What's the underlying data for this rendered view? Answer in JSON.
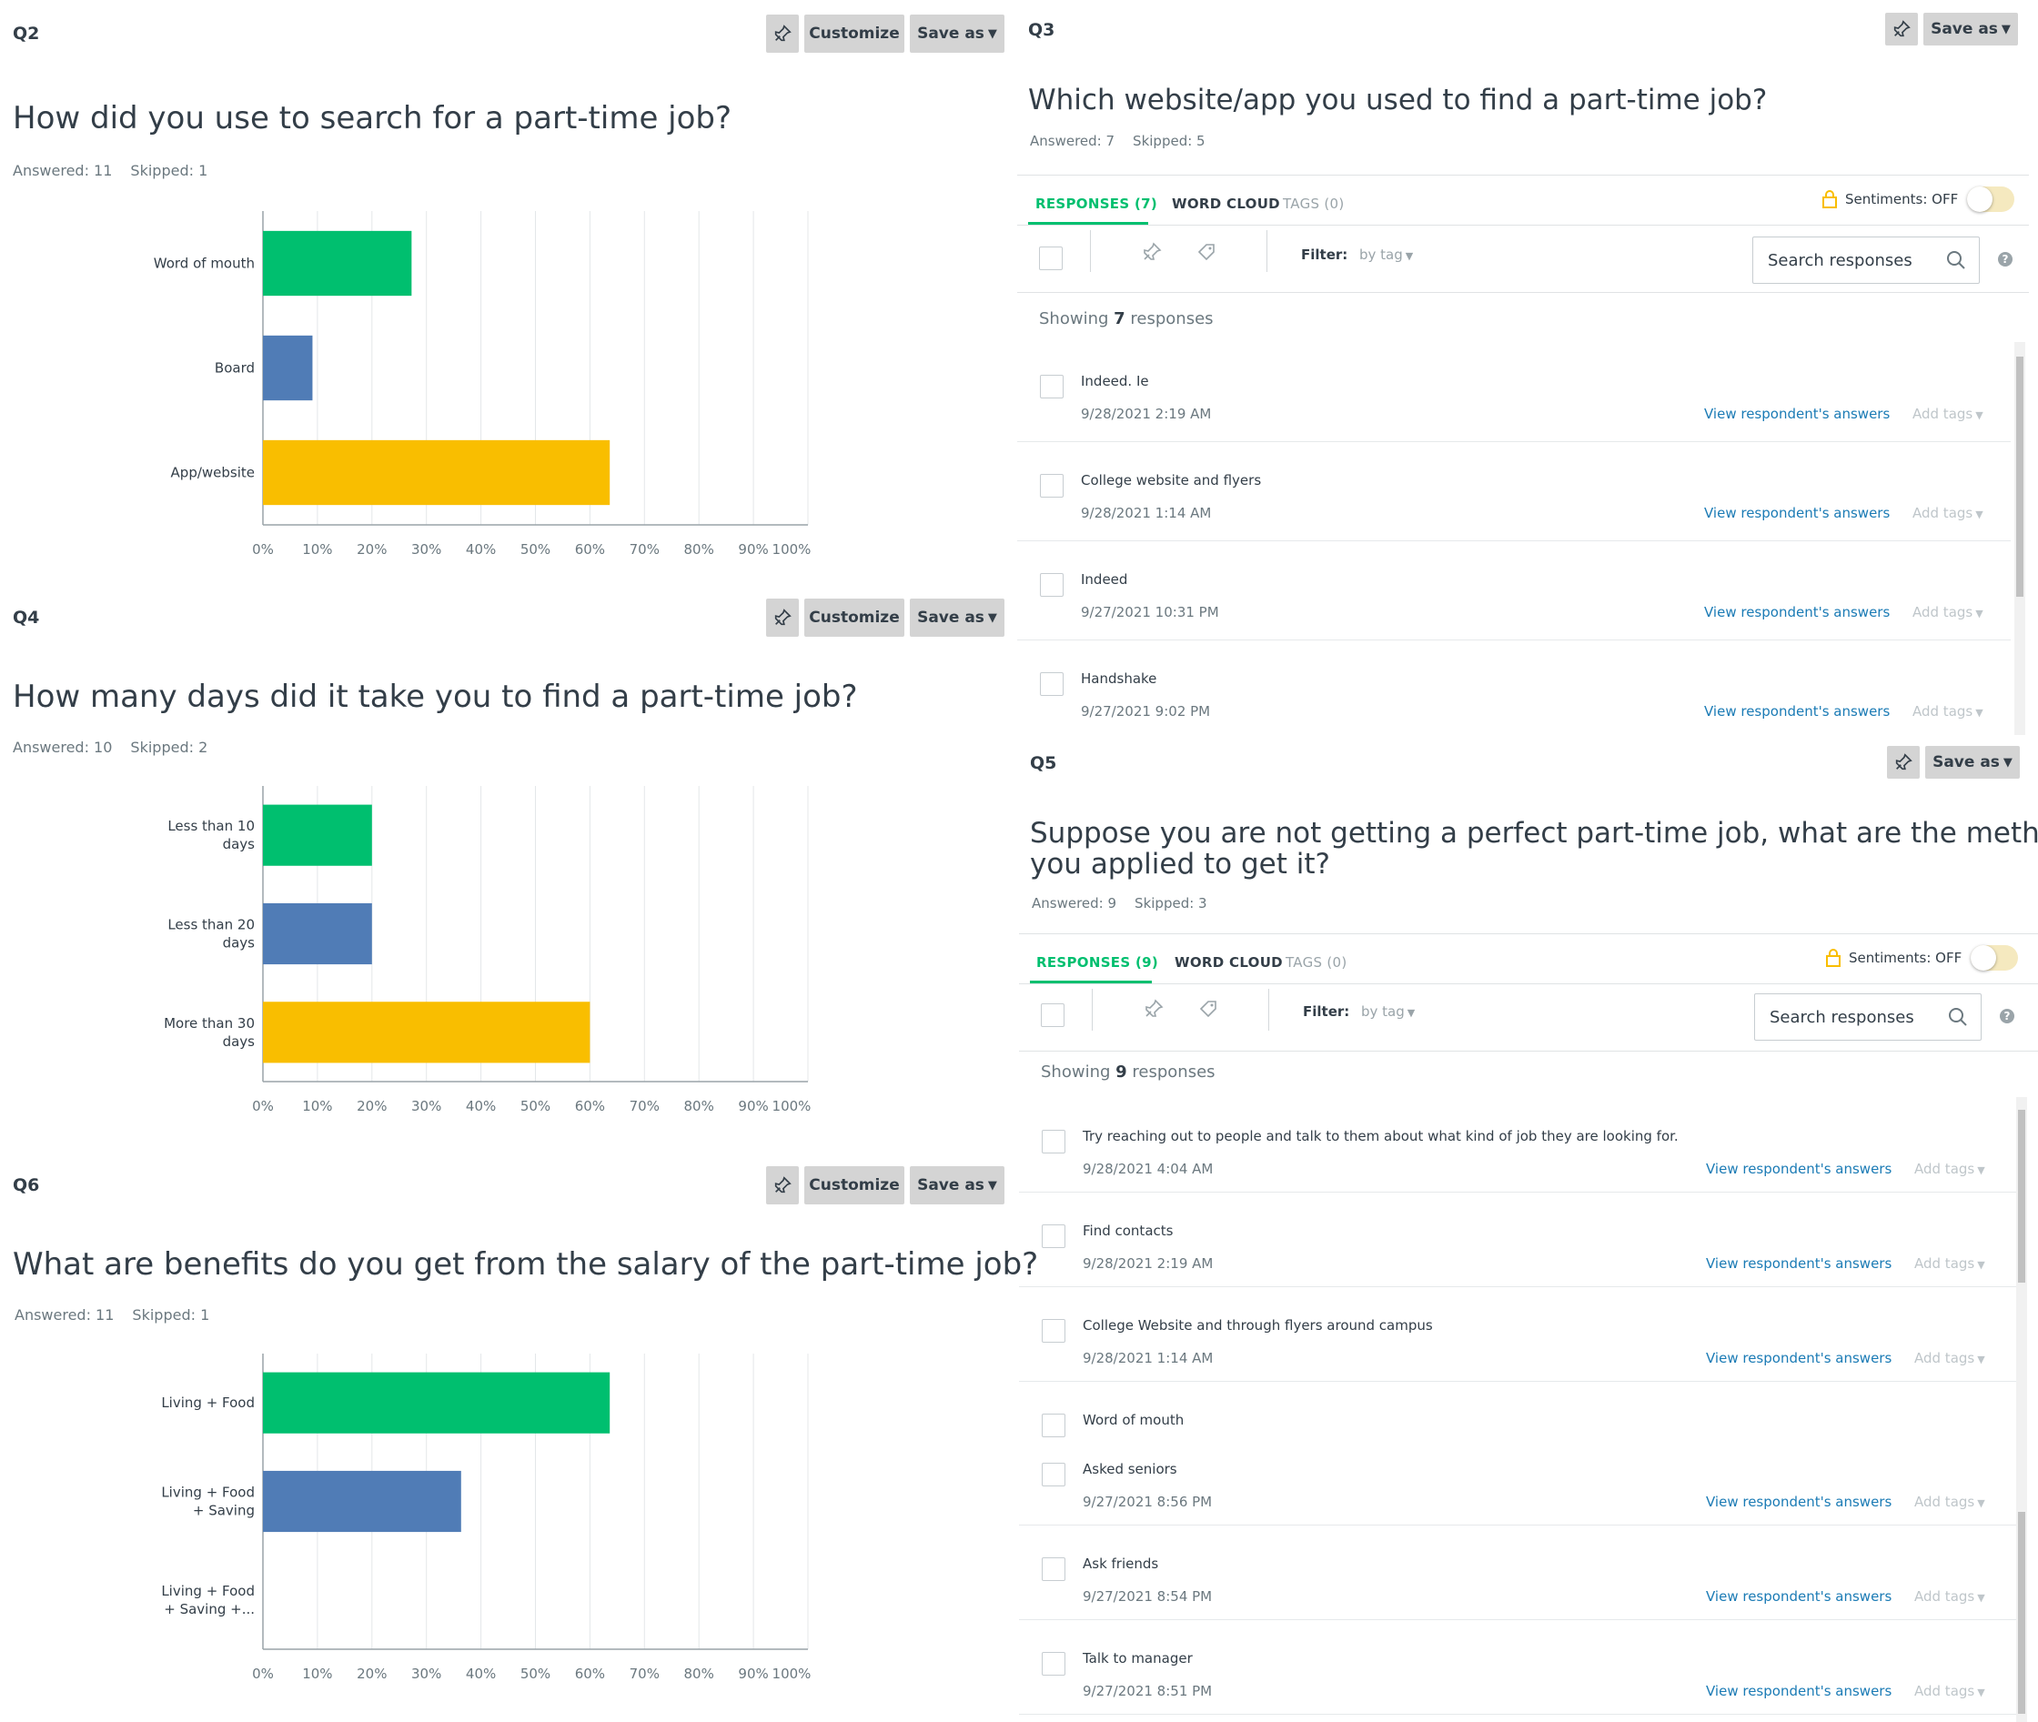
{
  "toolbar": {
    "customize_label": "Customize",
    "save_as_label": "Save as"
  },
  "q2": {
    "number": "Q2",
    "title": "How did you use to search for a part-time job?",
    "answered": "Answered: 11",
    "skipped": "Skipped: 1",
    "chart_data": {
      "type": "bar",
      "orientation": "horizontal",
      "categories": [
        "Word of mouth",
        "Board",
        "App/website"
      ],
      "values": [
        27.27,
        9.09,
        63.64
      ],
      "colors": [
        "#00bf6f",
        "#507cb6",
        "#f9be00"
      ],
      "xlim": [
        0,
        100
      ],
      "xticks": [
        "0%",
        "10%",
        "20%",
        "30%",
        "40%",
        "50%",
        "60%",
        "70%",
        "80%",
        "90%",
        "100%"
      ],
      "grid": true
    }
  },
  "q4": {
    "number": "Q4",
    "title": "How many days did it take you to find a part-time job?",
    "answered": "Answered: 10",
    "skipped": "Skipped: 2",
    "chart_data": {
      "type": "bar",
      "orientation": "horizontal",
      "categories": [
        "Less than 10|days",
        "Less than 20|days",
        "More than 30|days"
      ],
      "values": [
        20,
        20,
        60
      ],
      "colors": [
        "#00bf6f",
        "#507cb6",
        "#f9be00"
      ],
      "xlim": [
        0,
        100
      ],
      "xticks": [
        "0%",
        "10%",
        "20%",
        "30%",
        "40%",
        "50%",
        "60%",
        "70%",
        "80%",
        "90%",
        "100%"
      ],
      "grid": true
    }
  },
  "q6": {
    "number": "Q6",
    "title": "What are benefits do you get from the salary of the part-time job?",
    "answered": "Answered: 11",
    "skipped": "Skipped: 1",
    "chart_data": {
      "type": "bar",
      "orientation": "horizontal",
      "categories": [
        "Living + Food",
        "Living + Food|+ Saving",
        "Living + Food|+ Saving +..."
      ],
      "values": [
        63.64,
        36.36,
        0
      ],
      "colors": [
        "#00bf6f",
        "#507cb6",
        "#f9be00"
      ],
      "xlim": [
        0,
        100
      ],
      "xticks": [
        "0%",
        "10%",
        "20%",
        "30%",
        "40%",
        "50%",
        "60%",
        "70%",
        "80%",
        "90%",
        "100%"
      ],
      "grid": true
    }
  },
  "q3": {
    "number": "Q3",
    "title": "Which website/app you used to find a part-time job?",
    "answered": "Answered: 7",
    "skipped": "Skipped: 5",
    "tabs": {
      "responses": "RESPONSES (7)",
      "word_cloud": "WORD CLOUD",
      "tags": "TAGS (0)"
    },
    "sentiments": "Sentiments: OFF",
    "filter_label": "Filter:",
    "filter_value": "by tag",
    "search_placeholder": "Search responses",
    "showing_prefix": "Showing",
    "showing_count": "7",
    "showing_suffix": "responses",
    "responses": [
      {
        "text": "Indeed. Ie",
        "date": "9/28/2021 2:19 AM"
      },
      {
        "text": "College website and flyers",
        "date": "9/28/2021 1:14 AM"
      },
      {
        "text": "Indeed",
        "date": "9/27/2021 10:31 PM"
      },
      {
        "text": "Handshake",
        "date": "9/27/2021 9:02 PM"
      }
    ]
  },
  "q5": {
    "number": "Q5",
    "title_line1": "Suppose you are not getting a perfect part-time job, what are the methods",
    "title_line2": "you applied to get it?",
    "answered": "Answered: 9",
    "skipped": "Skipped: 3",
    "tabs": {
      "responses": "RESPONSES (9)",
      "word_cloud": "WORD CLOUD",
      "tags": "TAGS (0)"
    },
    "sentiments": "Sentiments: OFF",
    "filter_label": "Filter:",
    "filter_value": "by tag",
    "search_placeholder": "Search responses",
    "showing_prefix": "Showing",
    "showing_count": "9",
    "showing_suffix": "responses",
    "responses": [
      {
        "text": "Try reaching out to people and talk to them about what kind of job they are looking for.",
        "date": "9/28/2021 4:04 AM"
      },
      {
        "text": "Find contacts",
        "date": "9/28/2021 2:19 AM"
      },
      {
        "text": "College Website and through flyers around campus",
        "date": "9/28/2021 1:14 AM"
      },
      {
        "text": "Word of mouth",
        "date": ""
      },
      {
        "text": "Asked seniors",
        "date": "9/27/2021 8:56 PM"
      },
      {
        "text": "Ask friends",
        "date": "9/27/2021 8:54 PM"
      },
      {
        "text": "Talk to manager",
        "date": "9/27/2021 8:51 PM"
      }
    ]
  },
  "row_links": {
    "view": "View respondent's answers",
    "add_tags": "Add tags"
  },
  "colors": {
    "accent": "#00bf6f",
    "link": "#1b7bb5",
    "bar_green": "#00bf6f",
    "bar_blue": "#507cb6",
    "bar_yellow": "#f9be00"
  }
}
